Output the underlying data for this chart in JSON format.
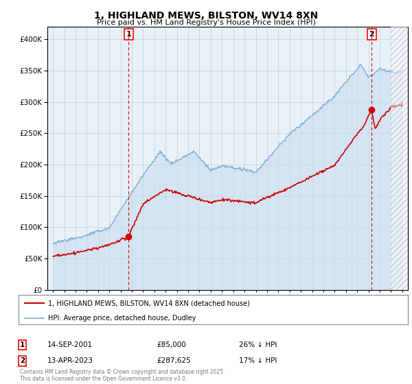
{
  "title": "1, HIGHLAND MEWS, BILSTON, WV14 8XN",
  "subtitle": "Price paid vs. HM Land Registry's House Price Index (HPI)",
  "footer": "Contains HM Land Registry data © Crown copyright and database right 2025.\nThis data is licensed under the Open Government Licence v3.0.",
  "legend_line1": "1, HIGHLAND MEWS, BILSTON, WV14 8XN (detached house)",
  "legend_line2": "HPI: Average price, detached house, Dudley",
  "sale1_date": "14-SEP-2001",
  "sale1_price": "£85,000",
  "sale1_hpi": "26% ↓ HPI",
  "sale2_date": "13-APR-2023",
  "sale2_price": "£287,625",
  "sale2_hpi": "17% ↓ HPI",
  "red_color": "#cc0000",
  "blue_color": "#7ab0d4",
  "blue_fill": "#ddeeff",
  "marker_color": "#cc0000",
  "dashed_color": "#cc0000",
  "background_color": "#ffffff",
  "grid_color": "#cccccc",
  "sale1_year": 2001.71,
  "sale1_value": 85000,
  "sale2_year": 2023.28,
  "sale2_value": 287625,
  "xmin": 1994.5,
  "xmax": 2026.5,
  "ymin": 0,
  "ymax": 420000
}
